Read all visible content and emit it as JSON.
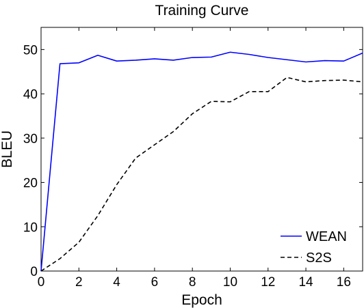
{
  "chart_data": {
    "type": "line",
    "title": "Training Curve",
    "xlabel": "Epoch",
    "ylabel": "BLEU",
    "xlim": [
      0,
      17
    ],
    "ylim": [
      0,
      55
    ],
    "xticks": [
      0,
      2,
      4,
      6,
      8,
      10,
      12,
      14,
      16
    ],
    "yticks": [
      0,
      10,
      20,
      30,
      40,
      50
    ],
    "grid": false,
    "legend_position": "bottom-right",
    "x": [
      0,
      1,
      2,
      3,
      4,
      5,
      6,
      7,
      8,
      9,
      10,
      11,
      12,
      13,
      14,
      15,
      16,
      17
    ],
    "series": [
      {
        "name": "WEAN",
        "color": "#0000ff",
        "dash": "solid",
        "values": [
          0,
          46.8,
          47.0,
          48.7,
          47.4,
          47.6,
          47.9,
          47.6,
          48.2,
          48.3,
          49.4,
          48.9,
          48.2,
          47.7,
          47.2,
          47.5,
          47.4,
          49.2
        ]
      },
      {
        "name": "S2S",
        "color": "#000000",
        "dash": "dashed",
        "values": [
          0,
          2.8,
          6.5,
          12.5,
          19.5,
          25.5,
          28.5,
          31.5,
          35.5,
          38.3,
          38.2,
          40.5,
          40.5,
          43.7,
          42.7,
          43.0,
          43.1,
          42.7
        ]
      }
    ]
  }
}
